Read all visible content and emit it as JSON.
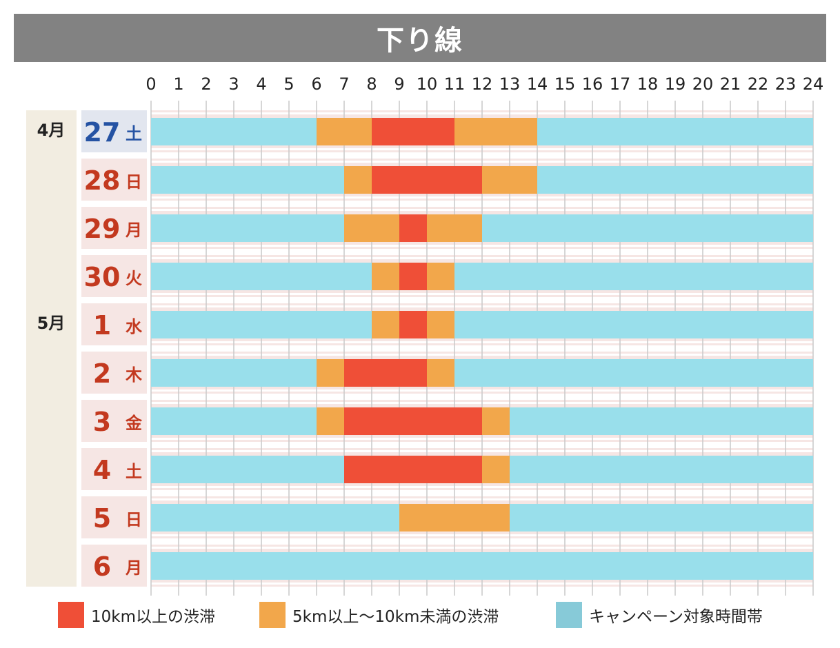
{
  "title": "下り線",
  "colors": {
    "severe": "#ef4f37",
    "moderate": "#f2a74b",
    "campaign": "#99dfeb",
    "legend_campaign": "#87cad8",
    "weekday_text": "#c3391f",
    "saturday_text": "#2452a3",
    "month_text": "#222222",
    "title_bg": "#828282"
  },
  "legend": {
    "severe": "10km以上の渋滞",
    "moderate": "5km以上～10km未満の渋滞",
    "campaign": "キャンペーン対象時間帯"
  },
  "chart_data": {
    "type": "gantt",
    "title": "下り線",
    "x_ticks": [
      "0",
      "1",
      "2",
      "3",
      "4",
      "5",
      "6",
      "7",
      "8",
      "9",
      "10",
      "11",
      "12",
      "13",
      "14",
      "15",
      "16",
      "17",
      "18",
      "19",
      "20",
      "21",
      "22",
      "23",
      "24"
    ],
    "x_range": [
      0,
      24
    ],
    "months": [
      {
        "label": "4月",
        "first_row": 0
      },
      {
        "label": "5月",
        "first_row": 4
      }
    ],
    "rows": [
      {
        "day": "27",
        "weekday": "土",
        "weekday_kind": "saturday",
        "segments": [
          {
            "from": 0,
            "to": 6,
            "level": "campaign"
          },
          {
            "from": 6,
            "to": 8,
            "level": "moderate"
          },
          {
            "from": 8,
            "to": 11,
            "level": "severe"
          },
          {
            "from": 11,
            "to": 14,
            "level": "moderate"
          },
          {
            "from": 14,
            "to": 24,
            "level": "campaign"
          }
        ]
      },
      {
        "day": "28",
        "weekday": "日",
        "weekday_kind": "holiday",
        "segments": [
          {
            "from": 0,
            "to": 7,
            "level": "campaign"
          },
          {
            "from": 7,
            "to": 8,
            "level": "moderate"
          },
          {
            "from": 8,
            "to": 12,
            "level": "severe"
          },
          {
            "from": 12,
            "to": 14,
            "level": "moderate"
          },
          {
            "from": 14,
            "to": 24,
            "level": "campaign"
          }
        ]
      },
      {
        "day": "29",
        "weekday": "月",
        "weekday_kind": "holiday",
        "segments": [
          {
            "from": 0,
            "to": 7,
            "level": "campaign"
          },
          {
            "from": 7,
            "to": 9,
            "level": "moderate"
          },
          {
            "from": 9,
            "to": 10,
            "level": "severe"
          },
          {
            "from": 10,
            "to": 12,
            "level": "moderate"
          },
          {
            "from": 12,
            "to": 24,
            "level": "campaign"
          }
        ]
      },
      {
        "day": "30",
        "weekday": "火",
        "weekday_kind": "holiday",
        "segments": [
          {
            "from": 0,
            "to": 8,
            "level": "campaign"
          },
          {
            "from": 8,
            "to": 9,
            "level": "moderate"
          },
          {
            "from": 9,
            "to": 10,
            "level": "severe"
          },
          {
            "from": 10,
            "to": 11,
            "level": "moderate"
          },
          {
            "from": 11,
            "to": 24,
            "level": "campaign"
          }
        ]
      },
      {
        "day": "1",
        "weekday": "水",
        "weekday_kind": "holiday",
        "segments": [
          {
            "from": 0,
            "to": 8,
            "level": "campaign"
          },
          {
            "from": 8,
            "to": 9,
            "level": "moderate"
          },
          {
            "from": 9,
            "to": 10,
            "level": "severe"
          },
          {
            "from": 10,
            "to": 11,
            "level": "moderate"
          },
          {
            "from": 11,
            "to": 24,
            "level": "campaign"
          }
        ]
      },
      {
        "day": "2",
        "weekday": "木",
        "weekday_kind": "holiday",
        "segments": [
          {
            "from": 0,
            "to": 6,
            "level": "campaign"
          },
          {
            "from": 6,
            "to": 7,
            "level": "moderate"
          },
          {
            "from": 7,
            "to": 10,
            "level": "severe"
          },
          {
            "from": 10,
            "to": 11,
            "level": "moderate"
          },
          {
            "from": 11,
            "to": 24,
            "level": "campaign"
          }
        ]
      },
      {
        "day": "3",
        "weekday": "金",
        "weekday_kind": "holiday",
        "segments": [
          {
            "from": 0,
            "to": 6,
            "level": "campaign"
          },
          {
            "from": 6,
            "to": 7,
            "level": "moderate"
          },
          {
            "from": 7,
            "to": 12,
            "level": "severe"
          },
          {
            "from": 12,
            "to": 13,
            "level": "moderate"
          },
          {
            "from": 13,
            "to": 24,
            "level": "campaign"
          }
        ]
      },
      {
        "day": "4",
        "weekday": "土",
        "weekday_kind": "holiday",
        "segments": [
          {
            "from": 0,
            "to": 7,
            "level": "campaign"
          },
          {
            "from": 7,
            "to": 12,
            "level": "severe"
          },
          {
            "from": 12,
            "to": 13,
            "level": "moderate"
          },
          {
            "from": 13,
            "to": 24,
            "level": "campaign"
          }
        ]
      },
      {
        "day": "5",
        "weekday": "日",
        "weekday_kind": "holiday",
        "segments": [
          {
            "from": 0,
            "to": 9,
            "level": "campaign"
          },
          {
            "from": 9,
            "to": 13,
            "level": "moderate"
          },
          {
            "from": 13,
            "to": 24,
            "level": "campaign"
          }
        ]
      },
      {
        "day": "6",
        "weekday": "月",
        "weekday_kind": "holiday",
        "segments": [
          {
            "from": 0,
            "to": 24,
            "level": "campaign"
          }
        ]
      }
    ]
  }
}
